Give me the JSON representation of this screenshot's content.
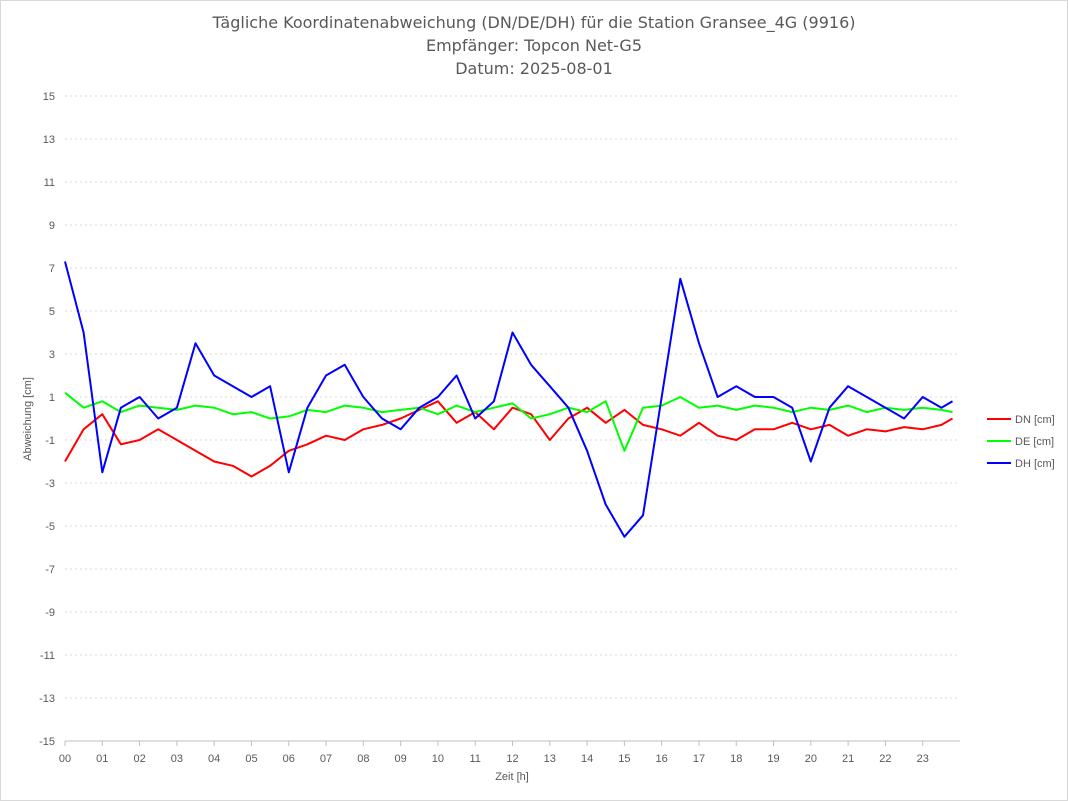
{
  "chart_data": {
    "type": "line",
    "title": "Tägliche Koordinatenabweichung (DN/DE/DH) für die Station Gransee_4G (9916)",
    "subtitle": "Empfänger: Topcon Net-G5",
    "date_line": "Datum: 2025-08-01",
    "xlabel": "Zeit [h]",
    "ylabel": "Abweichung [cm]",
    "xlim": [
      0,
      24
    ],
    "ylim": [
      -15,
      15
    ],
    "xticks": [
      "00",
      "01",
      "02",
      "03",
      "04",
      "05",
      "06",
      "07",
      "08",
      "09",
      "10",
      "11",
      "12",
      "13",
      "14",
      "15",
      "16",
      "17",
      "18",
      "19",
      "20",
      "21",
      "22",
      "23"
    ],
    "yticks": [
      15,
      13,
      11,
      9,
      7,
      5,
      3,
      1,
      -1,
      -3,
      -5,
      -7,
      -9,
      -11,
      -13,
      -15
    ],
    "grid": true,
    "legend_position": "right",
    "x": [
      0,
      0.5,
      1,
      1.5,
      2,
      2.5,
      3,
      3.5,
      4,
      4.5,
      5,
      5.5,
      6,
      6.5,
      7,
      7.5,
      8,
      8.5,
      9,
      9.5,
      10,
      10.5,
      11,
      11.5,
      12,
      12.5,
      13,
      13.5,
      14,
      14.5,
      15,
      15.5,
      16,
      16.5,
      17,
      17.5,
      18,
      18.5,
      19,
      19.5,
      20,
      20.5,
      21,
      21.5,
      22,
      22.5,
      23,
      23.5,
      23.8
    ],
    "series": [
      {
        "name": "DN [cm]",
        "color": "#ff0000",
        "values": [
          -2.0,
          -0.5,
          0.2,
          -1.2,
          -1.0,
          -0.5,
          -1.0,
          -1.5,
          -2.0,
          -2.2,
          -2.7,
          -2.2,
          -1.5,
          -1.2,
          -0.8,
          -1.0,
          -0.5,
          -0.3,
          0.0,
          0.4,
          0.8,
          -0.2,
          0.3,
          -0.5,
          0.5,
          0.2,
          -1.0,
          0.0,
          0.5,
          -0.2,
          0.4,
          -0.3,
          -0.5,
          -0.8,
          -0.2,
          -0.8,
          -1.0,
          -0.5,
          -0.5,
          -0.2,
          -0.5,
          -0.3,
          -0.8,
          -0.5,
          -0.6,
          -0.4,
          -0.5,
          -0.3,
          0.0
        ]
      },
      {
        "name": "DE [cm]",
        "color": "#00ff00",
        "values": [
          1.2,
          0.5,
          0.8,
          0.3,
          0.6,
          0.5,
          0.4,
          0.6,
          0.5,
          0.2,
          0.3,
          0.0,
          0.1,
          0.4,
          0.3,
          0.6,
          0.5,
          0.3,
          0.4,
          0.5,
          0.2,
          0.6,
          0.3,
          0.5,
          0.7,
          0.0,
          0.2,
          0.5,
          0.3,
          0.8,
          -1.5,
          0.5,
          0.6,
          1.0,
          0.5,
          0.6,
          0.4,
          0.6,
          0.5,
          0.3,
          0.5,
          0.4,
          0.6,
          0.3,
          0.5,
          0.4,
          0.5,
          0.4,
          0.3
        ]
      },
      {
        "name": "DH [cm]",
        "color": "#0000ff",
        "values": [
          7.3,
          4.0,
          -2.5,
          0.5,
          1.0,
          0.0,
          0.5,
          3.5,
          2.0,
          1.5,
          1.0,
          1.5,
          -2.5,
          0.5,
          2.0,
          2.5,
          1.0,
          0.0,
          -0.5,
          0.5,
          1.0,
          2.0,
          0.0,
          0.8,
          4.0,
          2.5,
          1.5,
          0.5,
          -1.5,
          -4.0,
          -5.5,
          -4.5,
          1.0,
          6.5,
          3.5,
          1.0,
          1.5,
          1.0,
          1.0,
          0.5,
          -2.0,
          0.5,
          1.5,
          1.0,
          0.5,
          0.0,
          1.0,
          0.5,
          0.8
        ]
      }
    ]
  }
}
